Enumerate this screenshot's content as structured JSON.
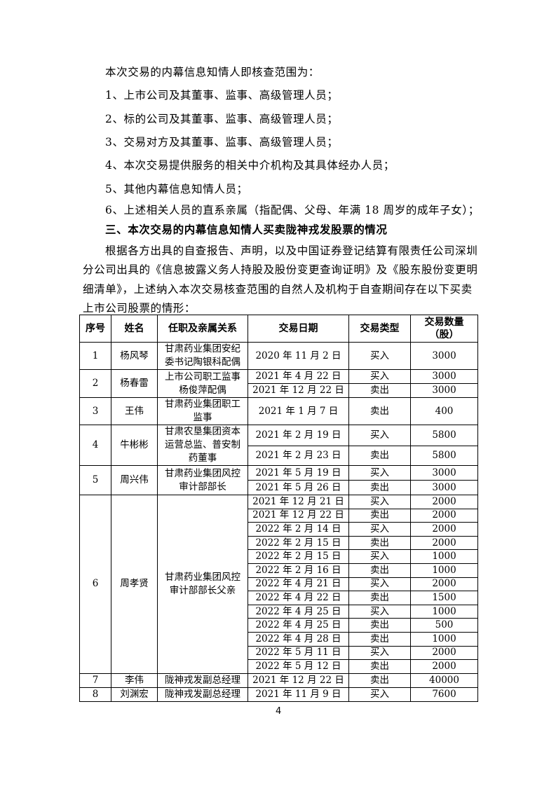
{
  "paragraphs": {
    "intro": "本次交易的内幕信息知情人即核查范围为：",
    "items": [
      "1、上市公司及其董事、监事、高级管理人员；",
      "2、标的公司及其董事、监事、高级管理人员；",
      "3、交易对方及其董事、监事、高级管理人员；",
      "4、本次交易提供服务的相关中介机构及其具体经办人员；",
      "5、其他内幕信息知情人员；",
      "6、上述相关人员的直系亲属（指配偶、父母、年满 18 周岁的成年子女）；"
    ],
    "heading": "三、本次交易的内幕信息知情人买卖陇神戎发股票的情况",
    "body_lines": [
      "根据各方出具的自查报告、声明，以及中国证券登记结算有限责任公司深圳",
      "分公司出具的《信息披露义务人持股及股份变更查询证明》及《股东股份变更明",
      "细清单》，上述纳入本次交易核查范围的自然人及机构于自查期间存在以下买卖",
      "上市公司股票的情形："
    ]
  },
  "table": {
    "headers": [
      "序号",
      "姓名",
      "任职及亲属关系",
      "交易日期",
      "交易类型",
      "交易数量（股）"
    ],
    "groups": [
      {
        "no": "1",
        "name": "杨风琴",
        "role": "甘肃药业集团安纪委书记陶银科配偶",
        "trades": [
          [
            "2020 年 11 月 2 日",
            "买入",
            "3000"
          ]
        ]
      },
      {
        "no": "2",
        "name": "杨春雷",
        "role": "上市公司职工监事杨俊萍配偶",
        "trades": [
          [
            "2021 年 4 月 22 日",
            "买入",
            "3000"
          ],
          [
            "2021 年 12 月 22 日",
            "卖出",
            "3000"
          ]
        ]
      },
      {
        "no": "3",
        "name": "王伟",
        "role": "甘肃药业集团职工监事",
        "trades": [
          [
            "2021 年 1 月 7 日",
            "卖出",
            "400"
          ]
        ]
      },
      {
        "no": "4",
        "name": "牛彬彬",
        "role": "甘肃农垦集团资本运营总监、普安制药董事",
        "trades": [
          [
            "2021 年 2 月 19 日",
            "买入",
            "5800"
          ],
          [
            "2021 年 2 月 23 日",
            "卖出",
            "5800"
          ]
        ]
      },
      {
        "no": "5",
        "name": "周兴伟",
        "role": "甘肃药业集团风控审计部部长",
        "trades": [
          [
            "2021 年 5 月 19 日",
            "买入",
            "3000"
          ],
          [
            "2021 年 5 月 26 日",
            "卖出",
            "3000"
          ]
        ]
      },
      {
        "no": "6",
        "name": "周孝贤",
        "role": "甘肃药业集团风控审计部部长父亲",
        "trades": [
          [
            "2021 年 12 月 21 日",
            "买入",
            "2000"
          ],
          [
            "2021 年 12 月 22 日",
            "卖出",
            "2000"
          ],
          [
            "2022 年 2 月 14 日",
            "买入",
            "2000"
          ],
          [
            "2022 年 2 月 15 日",
            "卖出",
            "2000"
          ],
          [
            "2022 年 2 月 15 日",
            "买入",
            "1000"
          ],
          [
            "2022 年 2 月 16 日",
            "卖出",
            "1000"
          ],
          [
            "2022 年 4 月 21 日",
            "买入",
            "2000"
          ],
          [
            "2022 年 4 月 22 日",
            "卖出",
            "1500"
          ],
          [
            "2022 年 4 月 25 日",
            "买入",
            "1000"
          ],
          [
            "2022 年 4 月 25 日",
            "卖出",
            "500"
          ],
          [
            "2022 年 4 月 28 日",
            "卖出",
            "1000"
          ],
          [
            "2022 年 5 月 11 日",
            "买入",
            "2000"
          ],
          [
            "2022 年 5 月 12 日",
            "卖出",
            "2000"
          ]
        ]
      },
      {
        "no": "7",
        "name": "李伟",
        "role": "陇神戎发副总经理",
        "trades": [
          [
            "2021 年 12 月 22 日",
            "卖出",
            "40000"
          ]
        ]
      },
      {
        "no": "8",
        "name": "刘渊宏",
        "role": "陇神戎发副总经理",
        "trades": [
          [
            "2021 年 11 月 9 日",
            "买入",
            "7600"
          ]
        ]
      }
    ]
  },
  "page_number": "4"
}
